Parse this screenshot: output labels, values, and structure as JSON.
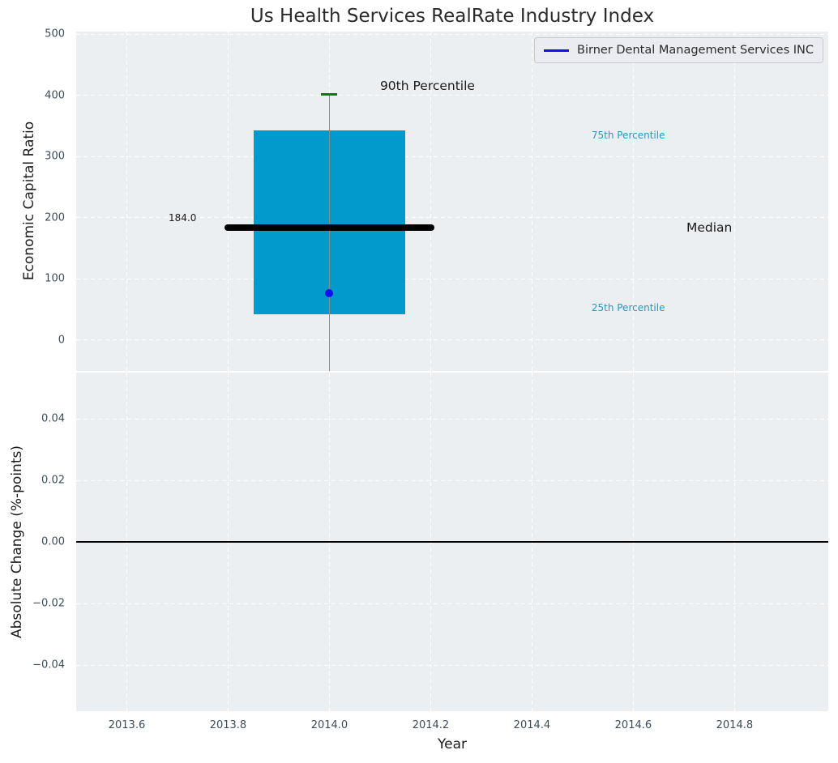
{
  "chart_data": [
    {
      "type": "box",
      "title": "Us Health Services RealRate Industry Index",
      "ylabel": "Economic Capital Ratio",
      "xlim": [
        2013.5,
        2014.985
      ],
      "ylim": [
        -50.4,
        504
      ],
      "background": "#eceff1",
      "grid": {
        "visible": true,
        "style": "dashed",
        "color": "#ffffff"
      },
      "yticks": {
        "values": [
          500,
          400,
          300,
          200,
          100,
          0
        ],
        "labels": [
          "500",
          "400",
          "300",
          "200",
          "100",
          "0"
        ]
      },
      "legend": {
        "position": "upper right",
        "entries": [
          {
            "label": "Birner Dental Management Services INC",
            "color": "#1010ee",
            "marker": "line"
          }
        ]
      },
      "box_plot": {
        "x": 2014.0,
        "box_left": 2013.85,
        "box_right": 2014.15,
        "q1": 42,
        "median": 184.0,
        "q3": 343,
        "p90": 402,
        "median_line_span": [
          2013.793,
          2014.207
        ],
        "whisker_extends_below_axis": true,
        "colors": {
          "fill": "#0299cc",
          "median_line": "#000000",
          "p90_cap": "#077d0a",
          "whisker": "#8c8c8c"
        }
      },
      "company_point": {
        "x": 2014.0,
        "y": 76,
        "color": "#1010ee"
      },
      "annotations": [
        {
          "text": "90th Percentile",
          "x": 2014.1,
          "y": 415,
          "ha": "left",
          "fontsize": 15.5,
          "color": "#1a1a1a"
        },
        {
          "text": "184.0",
          "x": 2013.71,
          "y": 200,
          "ha": "center",
          "fontsize": 12,
          "color": "#1a1a1a"
        },
        {
          "text": "75th Percentile",
          "x": 2014.59,
          "y": 335,
          "ha": "center",
          "fontsize": 12,
          "color": "#1f9ac9"
        },
        {
          "text": "Median",
          "x": 2014.75,
          "y": 184,
          "ha": "center",
          "fontsize": 15.5,
          "color": "#1a1a1a"
        },
        {
          "text": "25th Percentile",
          "x": 2014.59,
          "y": 53,
          "ha": "center",
          "fontsize": 12,
          "color": "#1f9ac9"
        }
      ]
    },
    {
      "type": "line",
      "ylabel": "Absolute Change (%-points)",
      "xlabel": "Year",
      "xlim": [
        2013.5,
        2014.985
      ],
      "ylim": [
        -0.055,
        0.055
      ],
      "background": "#eceff1",
      "grid": {
        "visible": true,
        "style": "dashed",
        "color": "#ffffff"
      },
      "yticks": {
        "values": [
          0.04,
          0.02,
          0,
          -0.02,
          -0.04
        ],
        "labels": [
          "0.04",
          "0.02",
          "0.00",
          "−0.02",
          "−0.04"
        ]
      },
      "xticks": {
        "values": [
          2013.6,
          2013.8,
          2014.0,
          2014.2,
          2014.4,
          2014.6,
          2014.8
        ],
        "labels": [
          "2013.6",
          "2013.8",
          "2014.0",
          "2014.2",
          "2014.4",
          "2014.6",
          "2014.8"
        ]
      },
      "zero_line": {
        "y": 0.0,
        "color": "#000000"
      },
      "series": []
    }
  ]
}
